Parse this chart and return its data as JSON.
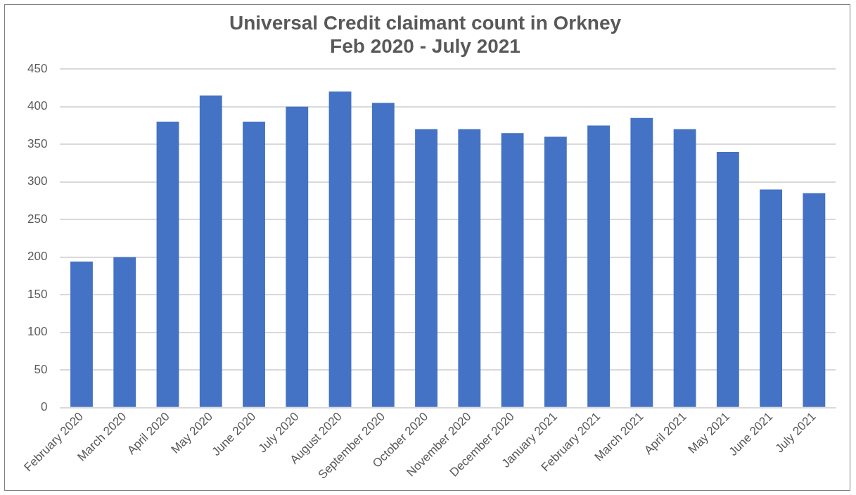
{
  "chart_data": {
    "type": "bar",
    "title": "Universal Credit claimant count in Orkney",
    "subtitle": "Feb 2020 - July 2021",
    "categories": [
      "February 2020",
      "March 2020",
      "April 2020",
      "May 2020",
      "June 2020",
      "July 2020",
      "August 2020",
      "September 2020",
      "October 2020",
      "November 2020",
      "December 2020",
      "January 2021",
      "February 2021",
      "March 2021",
      "April 2021",
      "May 2021",
      "June 2021",
      "July 2021"
    ],
    "values": [
      194,
      200,
      380,
      415,
      380,
      400,
      420,
      405,
      370,
      370,
      365,
      360,
      375,
      385,
      370,
      340,
      290,
      285
    ],
    "color": "#4472c4",
    "ylim": [
      0,
      450
    ],
    "yticks": [
      0,
      50,
      100,
      150,
      200,
      250,
      300,
      350,
      400,
      450
    ],
    "grid": "y",
    "legend": false
  }
}
